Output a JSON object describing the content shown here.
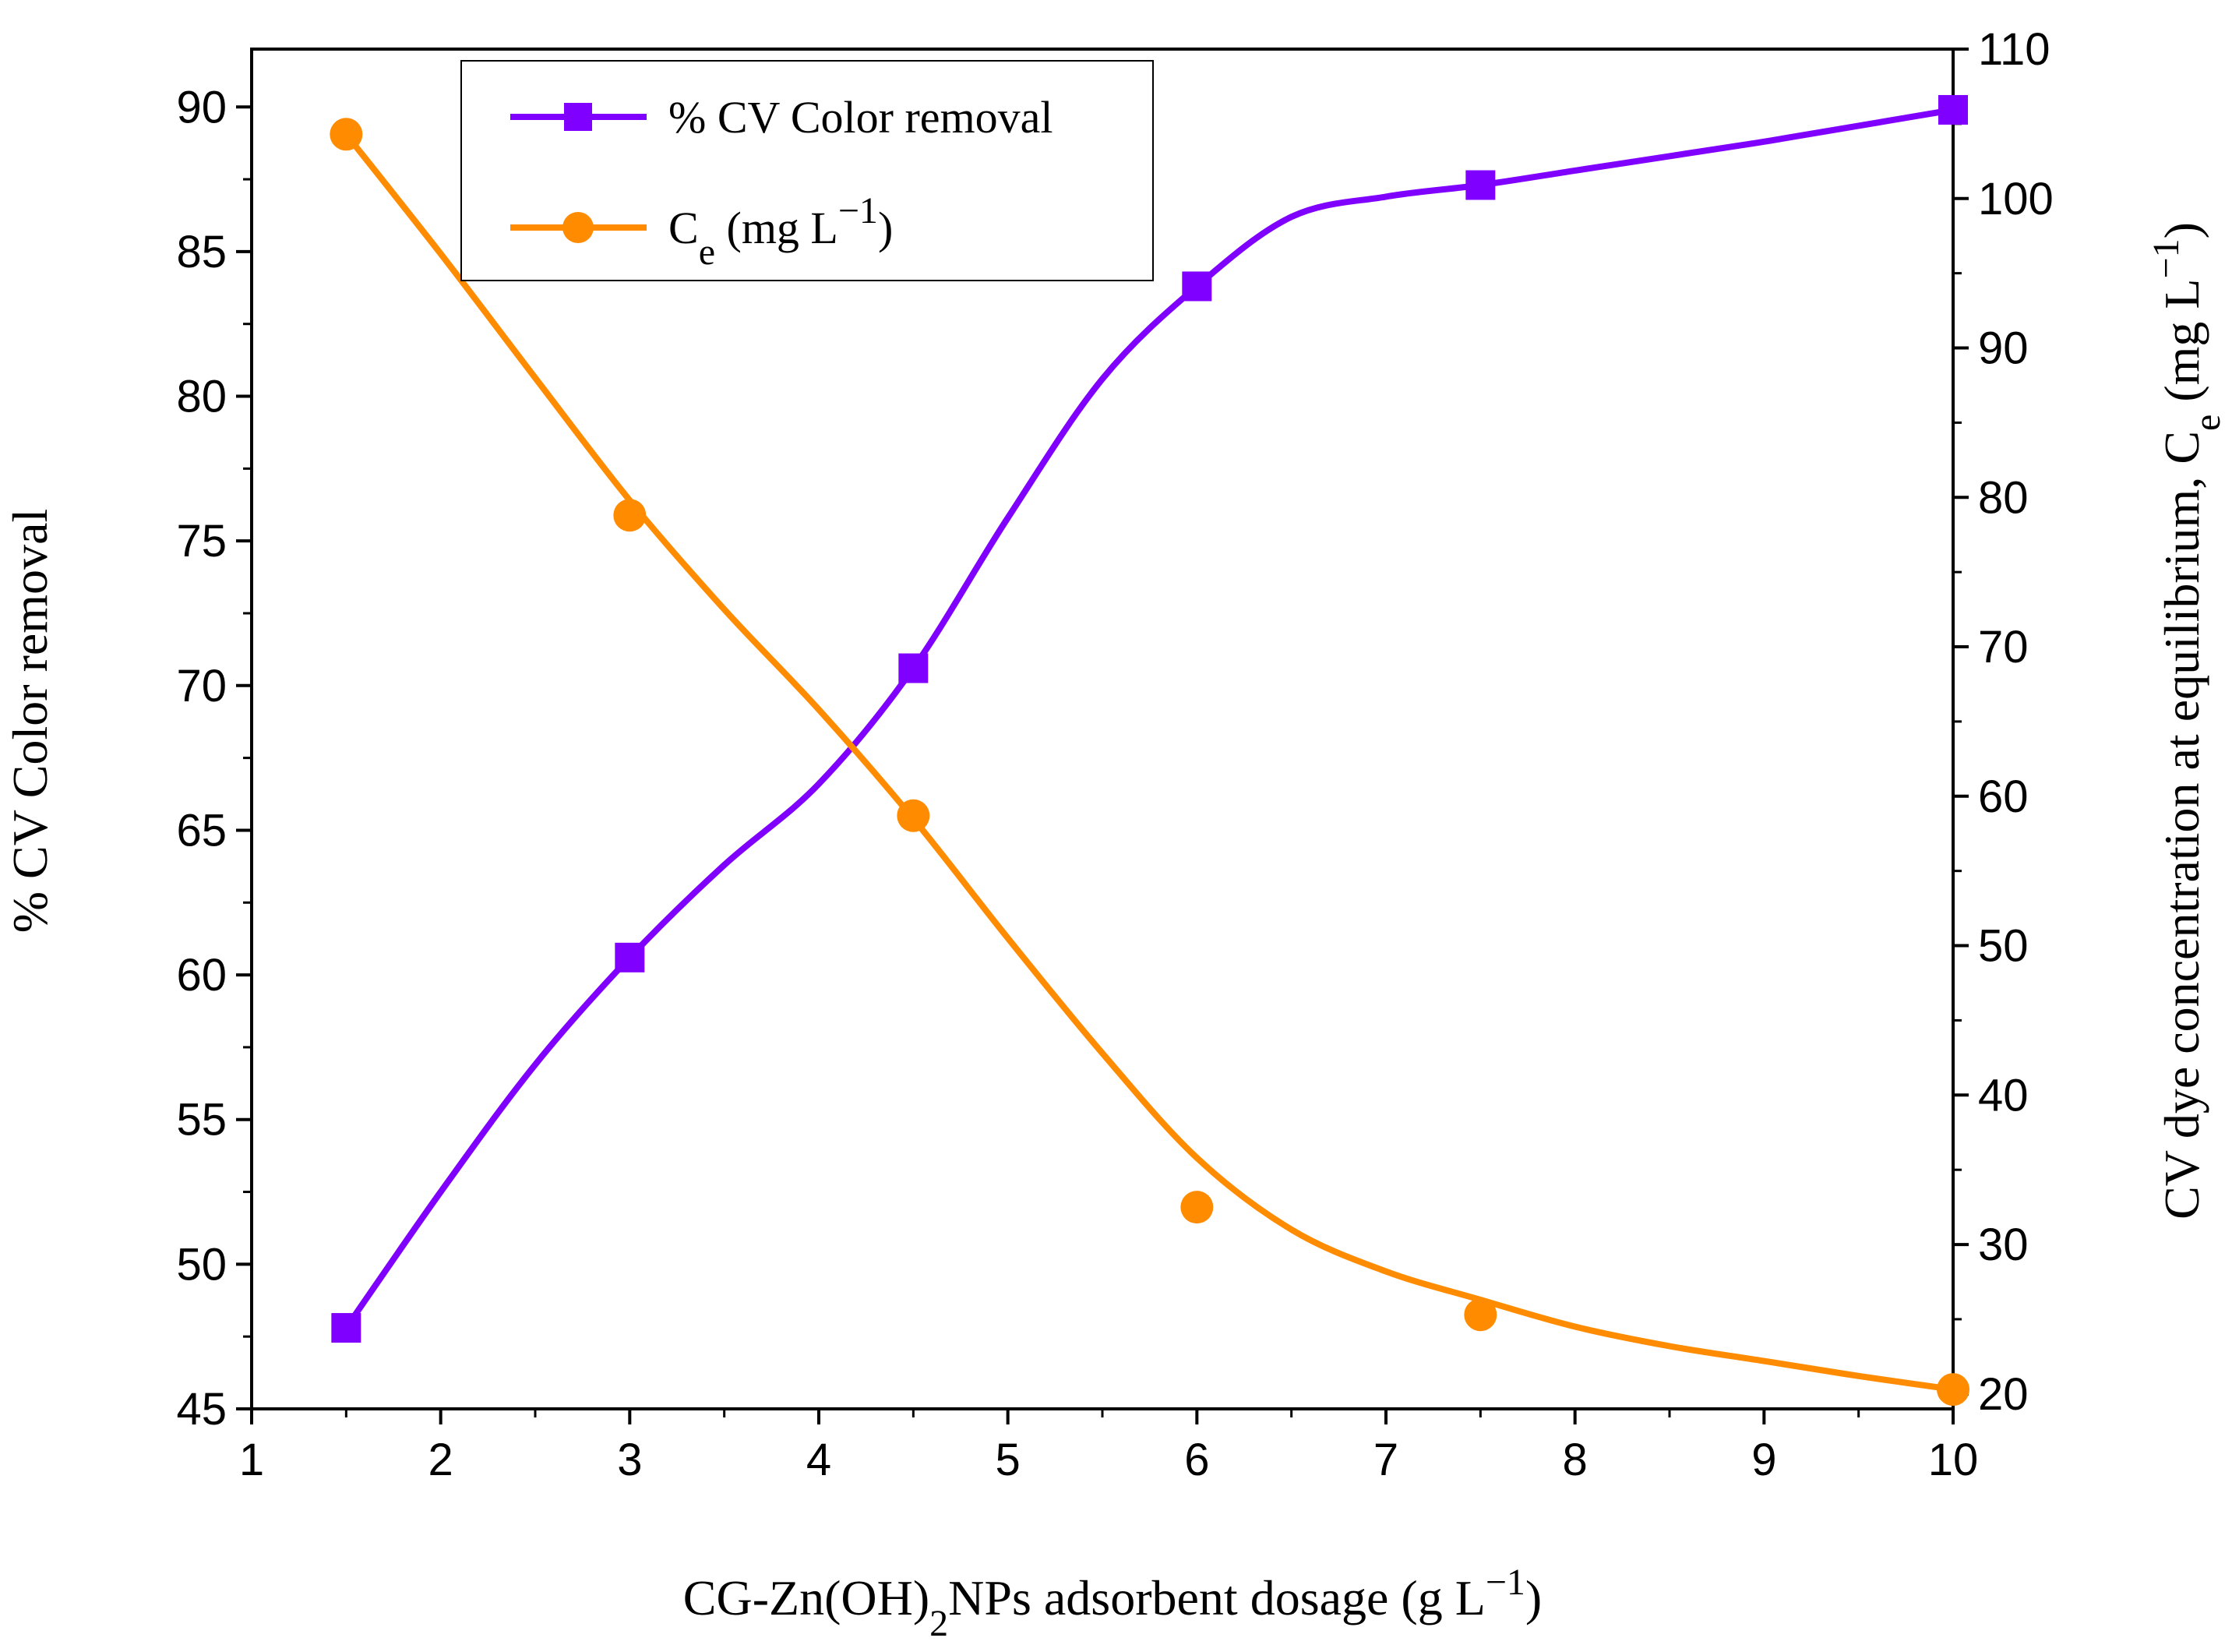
{
  "chart_data": {
    "type": "line",
    "x": [
      1.5,
      3,
      4.5,
      6,
      7.5,
      10
    ],
    "xlim": [
      1,
      10
    ],
    "xticks": [
      "1",
      "2",
      "3",
      "4",
      "5",
      "6",
      "7",
      "8",
      "9",
      "10"
    ],
    "xlabel": {
      "prefix": "CG-Zn(OH)",
      "sub": "2",
      "mid": "NPs adsorbent dosage (g L",
      "sup": "−1",
      "suffix": ")"
    },
    "ylabel_left": "% CV Color removal",
    "ylabel_right": {
      "prefix": "CV dye concentration at equilibrium, C",
      "sub": "e",
      "mid": " (mg L",
      "sup": "−1",
      "suffix": ")"
    },
    "ylim_left": [
      45,
      92
    ],
    "yticks_left": [
      "45",
      "50",
      "55",
      "60",
      "65",
      "70",
      "75",
      "80",
      "85",
      "90"
    ],
    "ylim_right": [
      19,
      110
    ],
    "yticks_right": [
      "20",
      "30",
      "40",
      "50",
      "60",
      "70",
      "80",
      "90",
      "100",
      "110"
    ],
    "series": [
      {
        "name": "% CV Color removal",
        "axis": "left",
        "marker": "square",
        "color": "#8000FF",
        "values": [
          47.8,
          60.6,
          70.6,
          83.8,
          87.3,
          89.9
        ],
        "fit_curve": [
          [
            1.5,
            47.8
          ],
          [
            2,
            52.5
          ],
          [
            2.5,
            56.9
          ],
          [
            3,
            60.6
          ],
          [
            3.5,
            63.8
          ],
          [
            4,
            66.6
          ],
          [
            4.5,
            70.6
          ],
          [
            5,
            75.8
          ],
          [
            5.5,
            80.6
          ],
          [
            6,
            83.8
          ],
          [
            6.5,
            86.2
          ],
          [
            7,
            86.9
          ],
          [
            7.5,
            87.3
          ],
          [
            8,
            87.8
          ],
          [
            8.5,
            88.3
          ],
          [
            9,
            88.8
          ],
          [
            9.5,
            89.35
          ],
          [
            10,
            89.9
          ]
        ]
      },
      {
        "name": "C",
        "name_sub": "e",
        "name_suffix": " (mg L",
        "name_sup": "−1",
        "name_close": ")",
        "axis": "right",
        "marker": "circle",
        "color": "#FF8C00",
        "values": [
          104.3,
          78.8,
          58.7,
          32.5,
          25.3,
          20.3
        ],
        "fit_curve": [
          [
            1.5,
            104.3
          ],
          [
            2,
            96.3
          ],
          [
            2.5,
            88
          ],
          [
            3,
            79.8
          ],
          [
            3.5,
            72.5
          ],
          [
            4,
            65.8
          ],
          [
            4.5,
            58.5
          ],
          [
            5,
            50.5
          ],
          [
            5.5,
            42.8
          ],
          [
            6,
            35.8
          ],
          [
            6.5,
            31
          ],
          [
            7,
            28.2
          ],
          [
            7.5,
            26.3
          ],
          [
            8,
            24.5
          ],
          [
            8.5,
            23.2
          ],
          [
            9,
            22.2
          ],
          [
            9.5,
            21.2
          ],
          [
            10,
            20.3
          ]
        ]
      }
    ],
    "legend_position": "top-center"
  }
}
